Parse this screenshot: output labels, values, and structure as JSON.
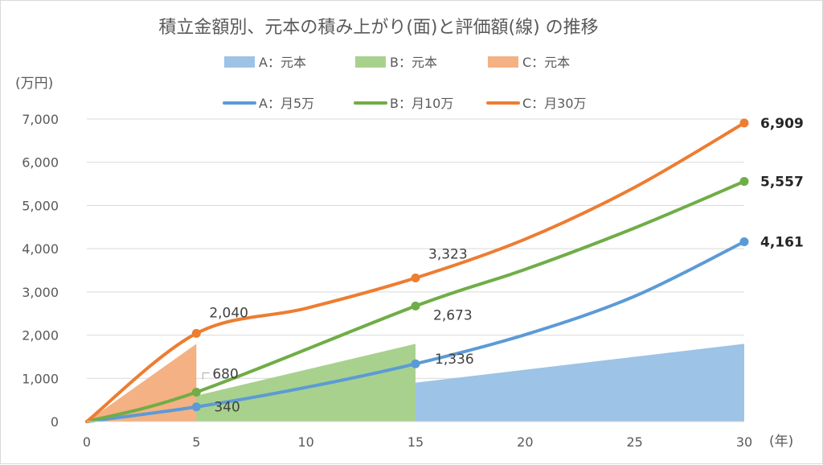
{
  "chart_data": {
    "type": "line-area",
    "title": "積立金額別、元本の積み上がり(面)と評価額(線) の推移",
    "y_unit_label": "(万円)",
    "x_unit_label": "(年)",
    "xlim": [
      0,
      30
    ],
    "ylim": [
      0,
      7000
    ],
    "x_ticks": [
      0,
      5,
      10,
      15,
      20,
      25,
      30
    ],
    "y_ticks": [
      0,
      1000,
      2000,
      3000,
      4000,
      5000,
      6000,
      7000
    ],
    "y_tick_labels": [
      "0",
      "1,000",
      "2,000",
      "3,000",
      "4,000",
      "5,000",
      "6,000",
      "7,000"
    ],
    "x_tick_labels": [
      "0",
      "5",
      "10",
      "15",
      "20",
      "25",
      "30"
    ],
    "area_series": [
      {
        "name": "A：元本",
        "color": "#9dc3e6",
        "x": [
          0,
          30
        ],
        "y": [
          0,
          1800
        ]
      },
      {
        "name": "B：元本",
        "color": "#a9d18e",
        "x": [
          0,
          15
        ],
        "y": [
          0,
          1800
        ]
      },
      {
        "name": "C：元本",
        "color": "#f4b183",
        "x": [
          0,
          5
        ],
        "y": [
          0,
          1800
        ]
      }
    ],
    "line_series": [
      {
        "name": "A：月5万",
        "color": "#5b9bd5",
        "x": [
          0,
          5,
          10,
          15,
          20,
          25,
          30
        ],
        "y": [
          0,
          340,
          790,
          1336,
          2010,
          2900,
          4161
        ],
        "markers": [
          {
            "x": 5,
            "y": 340,
            "label": "340"
          },
          {
            "x": 15,
            "y": 1336,
            "label": "1,336"
          },
          {
            "x": 30,
            "y": 4161,
            "label": "4,161",
            "bold": true
          }
        ]
      },
      {
        "name": "B：月10万",
        "color": "#70ad47",
        "x": [
          0,
          5,
          15,
          20,
          25,
          30
        ],
        "y": [
          0,
          680,
          2673,
          3520,
          4480,
          5557
        ],
        "markers": [
          {
            "x": 5,
            "y": 680,
            "label": "680"
          },
          {
            "x": 15,
            "y": 2673,
            "label": "2,673"
          },
          {
            "x": 30,
            "y": 5557,
            "label": "5,557",
            "bold": true
          }
        ]
      },
      {
        "name": "C：月30万",
        "color": "#ed7d31",
        "x": [
          0,
          5,
          10,
          15,
          20,
          25,
          30
        ],
        "y": [
          0,
          2040,
          2620,
          3323,
          4220,
          5420,
          6909
        ],
        "markers": [
          {
            "x": 5,
            "y": 2040,
            "label": "2,040"
          },
          {
            "x": 15,
            "y": 3323,
            "label": "3,323"
          },
          {
            "x": 30,
            "y": 6909,
            "label": "6,909",
            "bold": true
          }
        ]
      }
    ],
    "legend_position": "top"
  }
}
